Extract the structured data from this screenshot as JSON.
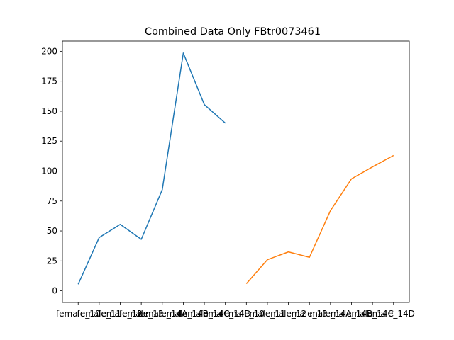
{
  "chart_data": {
    "type": "line",
    "title": "Combined Data Only FBtr0073461",
    "xlabel": "",
    "ylabel": "",
    "ylim": [
      -9.7,
      208.5
    ],
    "yticks": [
      0,
      25,
      50,
      75,
      100,
      125,
      150,
      175,
      200
    ],
    "grid": false,
    "categories": [
      "female_10",
      "female_11",
      "female_12",
      "female_13",
      "female_14A",
      "female_14B",
      "female_14C",
      "female_14D",
      "male_10",
      "male_11",
      "male_12",
      "male_13",
      "male_14A",
      "male_14B",
      "male_14C",
      "male_14D"
    ],
    "series": [
      {
        "color": "#1f77b4",
        "points": [
          {
            "x": "female_10",
            "y": 5.5
          },
          {
            "x": "female_11",
            "y": 44.5
          },
          {
            "x": "female_12",
            "y": 55.5
          },
          {
            "x": "female_13",
            "y": 43.0
          },
          {
            "x": "female_14A",
            "y": 84.5
          },
          {
            "x": "female_14B",
            "y": 198.5
          },
          {
            "x": "female_14C",
            "y": 155.5
          },
          {
            "x": "female_14D",
            "y": 140.0
          }
        ]
      },
      {
        "color": "#ff7f0e",
        "points": [
          {
            "x": "male_10",
            "y": 6.0
          },
          {
            "x": "male_11",
            "y": 26.0
          },
          {
            "x": "male_12",
            "y": 32.5
          },
          {
            "x": "male_13",
            "y": 28.0
          },
          {
            "x": "male_14A",
            "y": 67.0
          },
          {
            "x": "male_14B",
            "y": 93.5
          },
          {
            "x": "male_14C",
            "y": 103.5
          },
          {
            "x": "male_14D",
            "y": 113.0
          }
        ]
      }
    ]
  }
}
